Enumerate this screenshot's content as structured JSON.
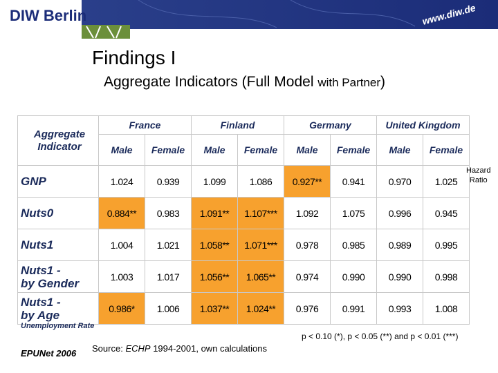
{
  "header": {
    "logo": "DIW Berlin",
    "url": "www.diw.de"
  },
  "title": "Findings I",
  "subtitle": [
    "Aggregate Indicators (Full Model",
    "with Partner",
    ")"
  ],
  "table": {
    "corner": [
      "Aggregate",
      "Indicator"
    ],
    "countries": [
      "France",
      "Finland",
      "Germany",
      "United Kingdom"
    ],
    "sexes": [
      "Male",
      "Female",
      "Male",
      "Female",
      "Male",
      "Female",
      "Male",
      "Female"
    ],
    "highlight_color": "#f7a12e",
    "rows": [
      {
        "label": [
          "GNP"
        ],
        "cells": [
          {
            "text": "1.024"
          },
          {
            "text": "0.939"
          },
          {
            "text": "1.099"
          },
          {
            "text": "1.086"
          },
          {
            "text": "0.927**",
            "highlight": true
          },
          {
            "text": "0.941"
          },
          {
            "text": "0.970"
          },
          {
            "text": "1.025"
          }
        ]
      },
      {
        "label": [
          "Nuts0"
        ],
        "cells": [
          {
            "text": "0.884**",
            "highlight": true
          },
          {
            "text": "0.983"
          },
          {
            "text": "1.091**",
            "highlight": true
          },
          {
            "text": "1.107***",
            "highlight": true
          },
          {
            "text": "1.092"
          },
          {
            "text": "1.075"
          },
          {
            "text": "0.996"
          },
          {
            "text": "0.945"
          }
        ]
      },
      {
        "label": [
          "Nuts1"
        ],
        "cells": [
          {
            "text": "1.004"
          },
          {
            "text": "1.021"
          },
          {
            "text": "1.058**",
            "highlight": true
          },
          {
            "text": "1.071***",
            "highlight": true
          },
          {
            "text": "0.978"
          },
          {
            "text": "0.985"
          },
          {
            "text": "0.989"
          },
          {
            "text": "0.995"
          }
        ]
      },
      {
        "label": [
          "Nuts1 -",
          "by Gender"
        ],
        "cells": [
          {
            "text": "1.003"
          },
          {
            "text": "1.017"
          },
          {
            "text": "1.056**",
            "highlight": true
          },
          {
            "text": "1.065**",
            "highlight": true
          },
          {
            "text": "0.974"
          },
          {
            "text": "0.990"
          },
          {
            "text": "0.990"
          },
          {
            "text": "0.998"
          }
        ]
      },
      {
        "label": [
          "Nuts1 -",
          "by Age"
        ],
        "cells": [
          {
            "text": "0.986*",
            "highlight": true
          },
          {
            "text": "1.006"
          },
          {
            "text": "1.037**",
            "highlight": true
          },
          {
            "text": "1.024**",
            "highlight": true
          },
          {
            "text": "0.976"
          },
          {
            "text": "0.991"
          },
          {
            "text": "0.993"
          },
          {
            "text": "1.008"
          }
        ]
      }
    ],
    "side_note": [
      "Hazard",
      "Ratio"
    ],
    "footnote": "Unemployment Rate"
  },
  "significance": "p < 0.10 (*), p < 0.05 (**) and p < 0.01 (***)",
  "footer": {
    "event": "EPUNet 2006",
    "source": [
      "Source:",
      "ECHP",
      "1994-2001, own calculations"
    ]
  }
}
